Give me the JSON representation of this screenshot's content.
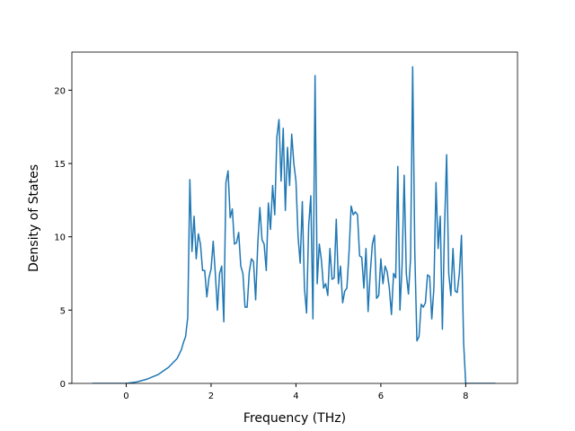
{
  "chart_data": {
    "type": "line",
    "x_label": "Frequency (THz)",
    "y_label": "Density of States",
    "xlim": [
      -1.28,
      9.22
    ],
    "ylim": [
      0,
      22.6
    ],
    "xticks": [
      0,
      2,
      4,
      6,
      8
    ],
    "yticks": [
      0,
      5,
      10,
      15,
      20
    ],
    "x": [
      -0.8,
      0,
      0.25,
      0.5,
      0.75,
      1.0,
      1.1,
      1.2,
      1.3,
      1.35,
      1.4,
      1.45,
      1.5,
      1.55,
      1.6,
      1.65,
      1.7,
      1.75,
      1.8,
      1.85,
      1.9,
      1.95,
      2.0,
      2.05,
      2.1,
      2.15,
      2.2,
      2.25,
      2.3,
      2.35,
      2.4,
      2.45,
      2.5,
      2.55,
      2.6,
      2.65,
      2.7,
      2.75,
      2.8,
      2.85,
      2.9,
      2.95,
      3.0,
      3.05,
      3.1,
      3.15,
      3.2,
      3.25,
      3.3,
      3.35,
      3.4,
      3.45,
      3.5,
      3.55,
      3.6,
      3.65,
      3.7,
      3.75,
      3.8,
      3.85,
      3.9,
      3.95,
      4.0,
      4.05,
      4.1,
      4.15,
      4.2,
      4.25,
      4.3,
      4.35,
      4.4,
      4.45,
      4.5,
      4.55,
      4.6,
      4.65,
      4.7,
      4.75,
      4.8,
      4.85,
      4.9,
      4.95,
      5.0,
      5.05,
      5.1,
      5.15,
      5.2,
      5.25,
      5.3,
      5.35,
      5.4,
      5.45,
      5.5,
      5.55,
      5.6,
      5.65,
      5.7,
      5.75,
      5.8,
      5.85,
      5.9,
      5.95,
      6.0,
      6.05,
      6.1,
      6.15,
      6.2,
      6.25,
      6.3,
      6.35,
      6.4,
      6.45,
      6.5,
      6.55,
      6.6,
      6.65,
      6.7,
      6.75,
      6.8,
      6.85,
      6.9,
      6.95,
      7.0,
      7.05,
      7.1,
      7.15,
      7.2,
      7.25,
      7.3,
      7.35,
      7.4,
      7.45,
      7.5,
      7.55,
      7.6,
      7.65,
      7.7,
      7.75,
      7.8,
      7.85,
      7.9,
      7.95,
      8.0,
      8.7
    ],
    "series": [
      {
        "name": "DOS",
        "color": "#1f77b4",
        "values": [
          0,
          0,
          0.1,
          0.3,
          0.6,
          1.1,
          1.4,
          1.7,
          2.3,
          2.8,
          3.2,
          4.5,
          13.9,
          9,
          11.4,
          8.5,
          10.2,
          9.5,
          7.7,
          7.7,
          5.9,
          7.2,
          7.8,
          9.7,
          7.5,
          5.0,
          7.5,
          8.0,
          4.2,
          13.7,
          14.5,
          11.3,
          11.9,
          9.5,
          9.6,
          10.3,
          8.0,
          7.5,
          5.2,
          5.2,
          7.6,
          8.5,
          8.3,
          5.7,
          9.5,
          12.0,
          9.8,
          9.5,
          7.7,
          12.3,
          10.5,
          13.5,
          11.5,
          16.8,
          18.0,
          13.8,
          17.4,
          11.8,
          16.1,
          13.5,
          17.0,
          15.0,
          13.8,
          10.0,
          8.2,
          12.4,
          6.5,
          4.8,
          10.8,
          12.8,
          4.4,
          21.0,
          6.8,
          9.5,
          8.4,
          6.5,
          6.8,
          6.0,
          9.2,
          7.1,
          7.2,
          11.2,
          6.8,
          8.0,
          5.5,
          6.3,
          6.5,
          8.9,
          12.1,
          11.5,
          11.7,
          11.5,
          8.7,
          8.6,
          6.5,
          9.2,
          4.9,
          7.5,
          9.5,
          10.1,
          5.8,
          6.0,
          8.5,
          6.8,
          8.0,
          7.6,
          6.5,
          4.7,
          7.5,
          7.2,
          14.8,
          5.0,
          8.0,
          14.2,
          7.5,
          6.1,
          8.5,
          21.6,
          9.0,
          2.9,
          3.2,
          5.4,
          5.2,
          5.5,
          7.4,
          7.3,
          4.4,
          6.5,
          13.7,
          9.2,
          11.4,
          3.7,
          10.5,
          15.6,
          7.5,
          6.0,
          9.2,
          6.3,
          6.2,
          7.5,
          10.1,
          2.8,
          0,
          0
        ]
      }
    ]
  }
}
